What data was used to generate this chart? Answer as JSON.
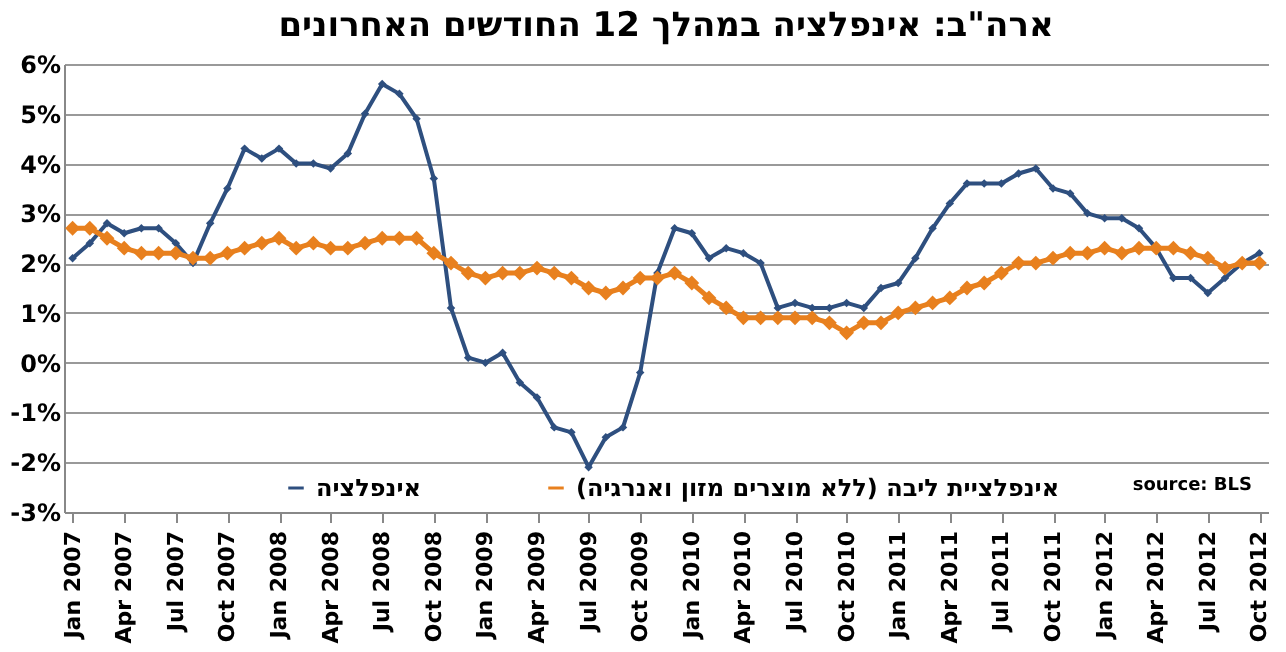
{
  "chart_data": {
    "type": "line",
    "title": "ארה\"ב: אינפלציה במהלך 12 החודשים האחרונים",
    "categories": [
      "Jan 2007",
      null,
      null,
      "Apr 2007",
      null,
      null,
      "Jul 2007",
      null,
      null,
      "Oct 2007",
      null,
      null,
      "Jan 2008",
      null,
      null,
      "Apr 2008",
      null,
      null,
      "Jul 2008",
      null,
      null,
      "Oct 2008",
      null,
      null,
      "Jan 2009",
      null,
      null,
      "Apr 2009",
      null,
      null,
      "Jul 2009",
      null,
      null,
      "Oct 2009",
      null,
      null,
      "Jan 2010",
      null,
      null,
      "Apr 2010",
      null,
      null,
      "Jul 2010",
      null,
      null,
      "Oct 2010",
      null,
      null,
      "Jan 2011",
      null,
      null,
      "Apr 2011",
      null,
      null,
      "Jul 2011",
      null,
      null,
      "Oct 2011",
      null,
      null,
      "Jan 2012",
      null,
      null,
      "Apr 2012",
      null,
      null,
      "Jul 2012",
      null,
      null,
      "Oct 2012"
    ],
    "series": [
      {
        "name": "אינפלציה",
        "color": "#2e4f7f",
        "values": [
          2.1,
          2.4,
          2.8,
          2.6,
          2.7,
          2.7,
          2.4,
          2.0,
          2.8,
          3.5,
          4.3,
          4.1,
          4.3,
          4.0,
          4.0,
          3.9,
          4.2,
          5.0,
          5.6,
          5.4,
          4.9,
          3.7,
          1.1,
          0.1,
          0.0,
          0.2,
          -0.4,
          -0.7,
          -1.3,
          -1.4,
          -2.1,
          -1.5,
          -1.3,
          -0.2,
          1.8,
          2.7,
          2.6,
          2.1,
          2.3,
          2.2,
          2.0,
          1.1,
          1.2,
          1.1,
          1.1,
          1.2,
          1.1,
          1.5,
          1.6,
          2.1,
          2.7,
          3.2,
          3.6,
          3.6,
          3.6,
          3.8,
          3.9,
          3.5,
          3.4,
          3.0,
          2.9,
          2.9,
          2.7,
          2.3,
          1.7,
          1.7,
          1.4,
          1.7,
          2.0,
          2.2
        ]
      },
      {
        "name": "אינפלציית ליבה (ללא מוצרים מזון ואנרגיה)",
        "color": "#e8801e",
        "values": [
          2.7,
          2.7,
          2.5,
          2.3,
          2.2,
          2.2,
          2.2,
          2.1,
          2.1,
          2.2,
          2.3,
          2.4,
          2.5,
          2.3,
          2.4,
          2.3,
          2.3,
          2.4,
          2.5,
          2.5,
          2.5,
          2.2,
          2.0,
          1.8,
          1.7,
          1.8,
          1.8,
          1.9,
          1.8,
          1.7,
          1.5,
          1.4,
          1.5,
          1.7,
          1.7,
          1.8,
          1.6,
          1.3,
          1.1,
          0.9,
          0.9,
          0.9,
          0.9,
          0.9,
          0.8,
          0.6,
          0.8,
          0.8,
          1.0,
          1.1,
          1.2,
          1.3,
          1.5,
          1.6,
          1.8,
          2.0,
          2.0,
          2.1,
          2.2,
          2.2,
          2.3,
          2.2,
          2.3,
          2.3,
          2.3,
          2.2,
          2.1,
          1.9,
          2.0,
          2.0
        ]
      }
    ],
    "ylim": [
      -3,
      6
    ],
    "yticks": [
      {
        "value": -3,
        "label": "-3%"
      },
      {
        "value": -2,
        "label": "-2%"
      },
      {
        "value": -1,
        "label": "-1%"
      },
      {
        "value": 0,
        "label": "0%"
      },
      {
        "value": 1,
        "label": "1%"
      },
      {
        "value": 2,
        "label": "2%"
      },
      {
        "value": 3,
        "label": "3%"
      },
      {
        "value": 4,
        "label": "4%"
      },
      {
        "value": 5,
        "label": "5%"
      },
      {
        "value": 6,
        "label": "6%"
      }
    ],
    "grid": "y",
    "legend": "bottom",
    "marker": "diamond",
    "line_style": "solid",
    "annotations": [
      "source: BLS"
    ]
  }
}
